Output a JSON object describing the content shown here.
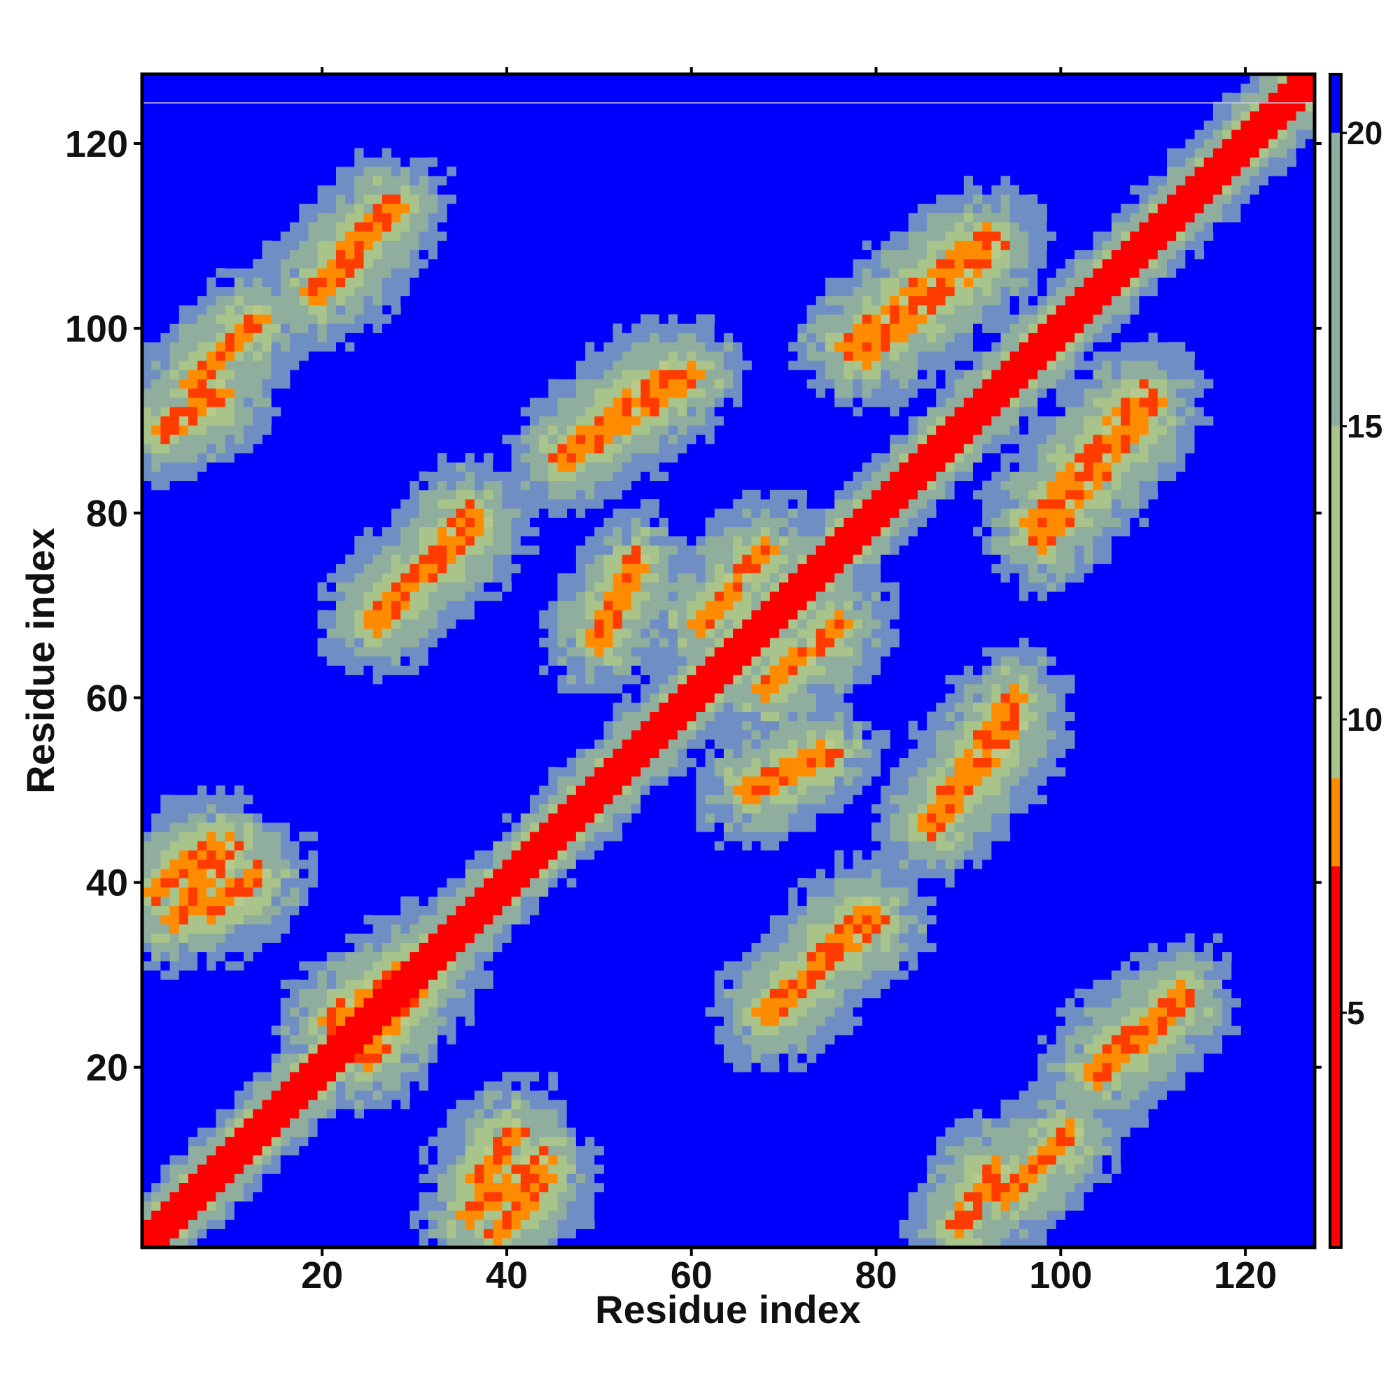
{
  "chart_data": {
    "type": "heatmap",
    "title": "",
    "xlabel": "Residue index",
    "ylabel": "Residue index",
    "n_residues": 127,
    "xlim": [
      1,
      127
    ],
    "ylim": [
      1,
      127
    ],
    "x_ticks": [
      20,
      40,
      60,
      80,
      100,
      120
    ],
    "y_ticks": [
      20,
      40,
      60,
      80,
      100,
      120
    ],
    "x_tick_labels": [
      "20",
      "40",
      "60",
      "80",
      "100",
      "120"
    ],
    "y_tick_labels": [
      "20",
      "40",
      "60",
      "80",
      "100",
      "120"
    ],
    "matrix_symmetric": true,
    "diagonal_value": 1,
    "background_value": 21,
    "contact_bands": [
      {
        "residues": [
          6,
          13
        ],
        "partners": [
          94,
          101
        ]
      },
      {
        "residues": [
          2,
          8
        ],
        "partners": [
          39,
          44
        ]
      },
      {
        "residues": [
          8,
          13
        ],
        "partners": [
          37,
          41
        ]
      },
      {
        "residues": [
          20,
          28
        ],
        "partners": [
          104,
          113
        ]
      },
      {
        "residues": [
          25,
          32
        ],
        "partners": [
          21,
          31
        ]
      },
      {
        "residues": [
          26,
          36
        ],
        "partners": [
          68,
          80
        ]
      },
      {
        "residues": [
          36,
          44
        ],
        "partners": [
          4,
          10
        ]
      },
      {
        "residues": [
          46,
          57
        ],
        "partners": [
          86,
          95
        ]
      },
      {
        "residues": [
          61,
          68
        ],
        "partners": [
          68,
          76
        ]
      },
      {
        "residues": [
          66,
          75
        ],
        "partners": [
          50,
          54
        ]
      },
      {
        "residues": [
          69,
          79
        ],
        "partners": [
          26,
          37
        ]
      },
      {
        "residues": [
          77,
          92
        ],
        "partners": [
          98,
          110
        ]
      },
      {
        "residues": [
          86,
          95
        ],
        "partners": [
          47,
          60
        ]
      },
      {
        "residues": [
          97,
          109
        ],
        "partners": [
          79,
          93
        ]
      },
      {
        "residues": [
          104,
          113
        ],
        "partners": [
          19,
          27
        ]
      },
      {
        "residues": [
          3,
          9
        ],
        "partners": [
          89,
          93
        ]
      }
    ],
    "colorbar": {
      "min": 1,
      "max": 21,
      "ticks": [
        5,
        10,
        15,
        20
      ],
      "tick_labels": [
        "5",
        "10",
        "15",
        "20"
      ],
      "colors": {
        "near": "#ff0000",
        "close": "#ff8c00",
        "mid": "#a8c48a",
        "far": "#6f8fc4",
        "background": "#0000ff"
      }
    },
    "grid": false,
    "legend": "colorbar-right"
  }
}
